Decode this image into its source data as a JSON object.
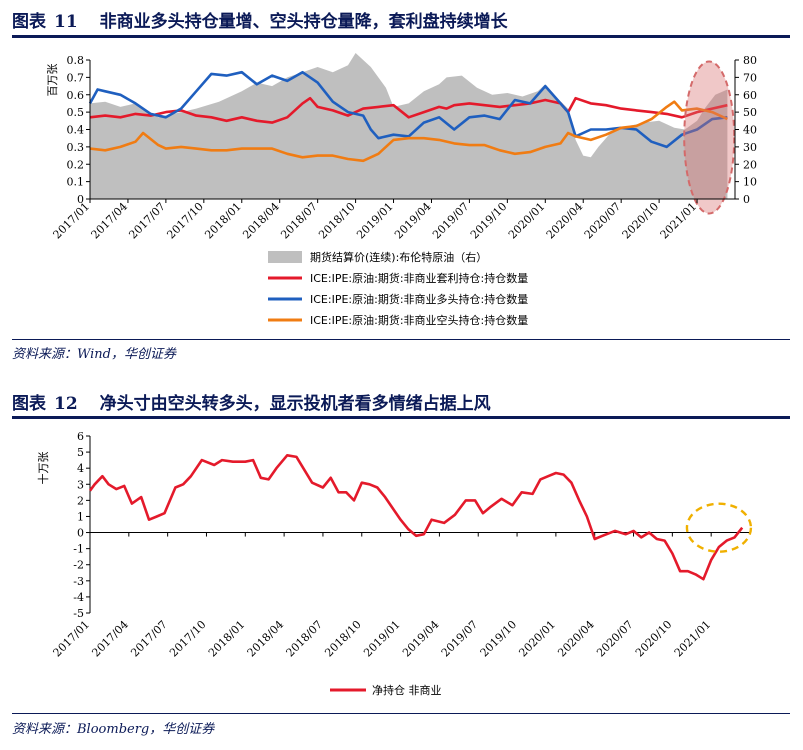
{
  "figure11": {
    "label": "图表",
    "number": "11",
    "title": "非商业多头持仓量增、空头持仓量降，套利盘持续增长",
    "source": "资料来源：Wind，华创证券"
  },
  "figure12": {
    "label": "图表",
    "number": "12",
    "title": "净头寸由空头转多头，显示投机者看多情绪占据上风",
    "source": "资料来源：Bloomberg，华创证券"
  },
  "chart_data": [
    {
      "type": "line",
      "ylabel": "百万张",
      "ylim": [
        0,
        0.8
      ],
      "yticks": [
        "0",
        "0.1",
        "0.2",
        "0.3",
        "0.4",
        "0.5",
        "0.6",
        "0.7",
        "0.8"
      ],
      "y2lim": [
        0,
        80
      ],
      "y2ticks": [
        "0",
        "10",
        "20",
        "30",
        "40",
        "50",
        "60",
        "70",
        "80"
      ],
      "xlim": [
        2017.0,
        2021.25
      ],
      "xticks": [
        "2017/01",
        "2017/04",
        "2017/07",
        "2017/10",
        "2018/01",
        "2018/04",
        "2018/07",
        "2018/10",
        "2019/01",
        "2019/04",
        "2019/07",
        "2019/10",
        "2020/01",
        "2020/04",
        "2020/07",
        "2020/10",
        "2021/01"
      ],
      "legend_position": "bottom",
      "area": {
        "name": "期货结算价(连续):布伦特原油（右）",
        "color": "#bfbfbf",
        "x": [
          2017.0,
          2017.1,
          2017.2,
          2017.3,
          2017.45,
          2017.55,
          2017.7,
          2017.85,
          2018.0,
          2018.1,
          2018.2,
          2018.3,
          2018.4,
          2018.5,
          2018.6,
          2018.7,
          2018.75,
          2018.85,
          2018.95,
          2019.0,
          2019.1,
          2019.2,
          2019.3,
          2019.35,
          2019.45,
          2019.55,
          2019.65,
          2019.75,
          2019.85,
          2019.95,
          2020.0,
          2020.08,
          2020.15,
          2020.2,
          2020.25,
          2020.3,
          2020.35,
          2020.45,
          2020.55,
          2020.65,
          2020.75,
          2020.85,
          2020.92,
          2021.0,
          2021.05,
          2021.12,
          2021.2
        ],
        "values": [
          55,
          56,
          53,
          55,
          47,
          49,
          52,
          56,
          62,
          67,
          65,
          70,
          73,
          76,
          73,
          77,
          84,
          76,
          64,
          53,
          55,
          62,
          66,
          70,
          71,
          64,
          60,
          61,
          59,
          62,
          66,
          58,
          52,
          34,
          25,
          24,
          30,
          40,
          42,
          44,
          45,
          41,
          40,
          45,
          52,
          60,
          63
        ]
      },
      "series": [
        {
          "name": "ICE:IPE:原油:期货:非商业套利持仓:持仓数量",
          "color": "#e41a2b",
          "x": [
            2017.0,
            2017.1,
            2017.2,
            2017.3,
            2017.4,
            2017.5,
            2017.6,
            2017.7,
            2017.8,
            2017.9,
            2018.0,
            2018.1,
            2018.2,
            2018.3,
            2018.4,
            2018.45,
            2018.5,
            2018.6,
            2018.7,
            2018.8,
            2018.9,
            2019.0,
            2019.1,
            2019.2,
            2019.3,
            2019.35,
            2019.4,
            2019.5,
            2019.6,
            2019.7,
            2019.8,
            2019.9,
            2020.0,
            2020.1,
            2020.15,
            2020.2,
            2020.3,
            2020.4,
            2020.5,
            2020.6,
            2020.7,
            2020.8,
            2020.9,
            2021.0,
            2021.1,
            2021.2
          ],
          "values": [
            0.47,
            0.48,
            0.47,
            0.49,
            0.48,
            0.5,
            0.51,
            0.48,
            0.47,
            0.45,
            0.47,
            0.45,
            0.44,
            0.47,
            0.55,
            0.58,
            0.53,
            0.51,
            0.48,
            0.52,
            0.53,
            0.54,
            0.47,
            0.5,
            0.53,
            0.52,
            0.54,
            0.55,
            0.54,
            0.53,
            0.54,
            0.55,
            0.57,
            0.55,
            0.5,
            0.58,
            0.55,
            0.54,
            0.52,
            0.51,
            0.5,
            0.49,
            0.47,
            0.5,
            0.52,
            0.54
          ]
        },
        {
          "name": "ICE:IPE:原油:期货:非商业多头持仓:持仓数量",
          "color": "#1f5fbf",
          "x": [
            2017.0,
            2017.05,
            2017.1,
            2017.2,
            2017.3,
            2017.4,
            2017.5,
            2017.6,
            2017.7,
            2017.8,
            2017.9,
            2018.0,
            2018.1,
            2018.2,
            2018.3,
            2018.4,
            2018.5,
            2018.6,
            2018.7,
            2018.8,
            2018.85,
            2018.9,
            2019.0,
            2019.1,
            2019.2,
            2019.3,
            2019.4,
            2019.5,
            2019.6,
            2019.7,
            2019.8,
            2019.9,
            2020.0,
            2020.1,
            2020.15,
            2020.2,
            2020.3,
            2020.4,
            2020.5,
            2020.6,
            2020.7,
            2020.8,
            2020.9,
            2021.0,
            2021.1,
            2021.2
          ],
          "values": [
            0.55,
            0.63,
            0.62,
            0.6,
            0.55,
            0.49,
            0.47,
            0.52,
            0.62,
            0.72,
            0.71,
            0.73,
            0.66,
            0.71,
            0.68,
            0.73,
            0.67,
            0.56,
            0.5,
            0.48,
            0.4,
            0.35,
            0.37,
            0.36,
            0.44,
            0.47,
            0.4,
            0.47,
            0.48,
            0.46,
            0.57,
            0.55,
            0.65,
            0.55,
            0.5,
            0.36,
            0.4,
            0.4,
            0.41,
            0.4,
            0.33,
            0.3,
            0.37,
            0.4,
            0.46,
            0.47
          ]
        },
        {
          "name": "ICE:IPE:原油:期货:非商业空头持仓:持仓数量",
          "color": "#f07c13",
          "x": [
            2017.0,
            2017.1,
            2017.2,
            2017.3,
            2017.35,
            2017.45,
            2017.5,
            2017.6,
            2017.7,
            2017.8,
            2017.9,
            2018.0,
            2018.1,
            2018.2,
            2018.3,
            2018.4,
            2018.5,
            2018.6,
            2018.7,
            2018.8,
            2018.9,
            2019.0,
            2019.1,
            2019.2,
            2019.3,
            2019.4,
            2019.5,
            2019.6,
            2019.7,
            2019.8,
            2019.9,
            2020.0,
            2020.1,
            2020.15,
            2020.2,
            2020.3,
            2020.4,
            2020.5,
            2020.6,
            2020.7,
            2020.8,
            2020.85,
            2020.9,
            2021.0,
            2021.1,
            2021.2
          ],
          "values": [
            0.29,
            0.28,
            0.3,
            0.33,
            0.38,
            0.31,
            0.29,
            0.3,
            0.29,
            0.28,
            0.28,
            0.29,
            0.29,
            0.29,
            0.26,
            0.24,
            0.25,
            0.25,
            0.23,
            0.22,
            0.26,
            0.34,
            0.35,
            0.35,
            0.34,
            0.32,
            0.31,
            0.31,
            0.28,
            0.26,
            0.27,
            0.3,
            0.32,
            0.38,
            0.36,
            0.34,
            0.37,
            0.41,
            0.42,
            0.46,
            0.53,
            0.56,
            0.51,
            0.52,
            0.5,
            0.46
          ]
        }
      ]
    },
    {
      "type": "line",
      "ylabel": "十万张",
      "ylim": [
        -5,
        6
      ],
      "yticks": [
        "-5",
        "-4",
        "-3",
        "-2",
        "-1",
        "0",
        "1",
        "2",
        "3",
        "4",
        "5",
        "6"
      ],
      "xlim": [
        2017.0,
        2021.25
      ],
      "xticks": [
        "2017/01",
        "2017/04",
        "2017/07",
        "2017/10",
        "2018/01",
        "2018/04",
        "2018/07",
        "2018/10",
        "2019/01",
        "2019/04",
        "2019/07",
        "2019/10",
        "2020/01",
        "2020/04",
        "2020/07",
        "2020/10",
        "2021/01"
      ],
      "legend_position": "bottom",
      "series": [
        {
          "name": "净持仓 非商业",
          "color": "#e41a2b",
          "x": [
            2017.0,
            2017.03,
            2017.08,
            2017.12,
            2017.17,
            2017.22,
            2017.27,
            2017.33,
            2017.38,
            2017.43,
            2017.48,
            2017.55,
            2017.6,
            2017.65,
            2017.72,
            2017.8,
            2017.85,
            2017.92,
            2018.0,
            2018.05,
            2018.1,
            2018.15,
            2018.2,
            2018.27,
            2018.33,
            2018.38,
            2018.43,
            2018.5,
            2018.55,
            2018.6,
            2018.65,
            2018.7,
            2018.75,
            2018.8,
            2018.85,
            2018.9,
            2018.95,
            2019.0,
            2019.05,
            2019.1,
            2019.15,
            2019.2,
            2019.28,
            2019.35,
            2019.42,
            2019.48,
            2019.53,
            2019.58,
            2019.65,
            2019.72,
            2019.78,
            2019.85,
            2019.9,
            2019.95,
            2020.0,
            2020.05,
            2020.1,
            2020.15,
            2020.2,
            2020.25,
            2020.3,
            2020.38,
            2020.45,
            2020.5,
            2020.55,
            2020.6,
            2020.65,
            2020.7,
            2020.75,
            2020.8,
            2020.85,
            2020.9,
            2020.95,
            2021.0,
            2021.05,
            2021.1,
            2021.15,
            2021.2
          ],
          "values": [
            2.6,
            3.0,
            3.5,
            3.0,
            2.7,
            2.9,
            1.8,
            2.2,
            0.8,
            1.0,
            1.2,
            2.8,
            3.0,
            3.5,
            4.5,
            4.2,
            4.5,
            4.4,
            4.4,
            4.5,
            3.4,
            3.3,
            4.0,
            4.8,
            4.7,
            3.9,
            3.1,
            2.8,
            3.4,
            2.5,
            2.5,
            2.0,
            3.1,
            3.0,
            2.8,
            2.2,
            1.5,
            0.8,
            0.2,
            -0.2,
            -0.1,
            0.8,
            0.6,
            1.1,
            2.0,
            2.0,
            1.2,
            1.6,
            2.1,
            1.7,
            2.5,
            2.4,
            3.3,
            3.5,
            3.7,
            3.6,
            3.1,
            2.0,
            1.0,
            -0.4,
            -0.2,
            0.1,
            -0.1,
            0.1,
            -0.3,
            0.0,
            -0.4,
            -0.5,
            -1.3,
            -2.4,
            -2.4,
            -2.6,
            -2.9,
            -1.7,
            -0.9,
            -0.5,
            -0.3,
            0.3
          ]
        }
      ]
    }
  ]
}
